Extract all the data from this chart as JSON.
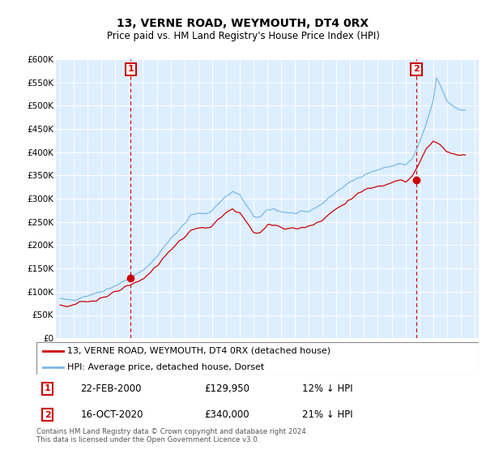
{
  "title": "13, VERNE ROAD, WEYMOUTH, DT4 0RX",
  "subtitle": "Price paid vs. HM Land Registry's House Price Index (HPI)",
  "legend_line1": "13, VERNE ROAD, WEYMOUTH, DT4 0RX (detached house)",
  "legend_line2": "HPI: Average price, detached house, Dorset",
  "annotation1_date": "22-FEB-2000",
  "annotation1_price": "£129,950",
  "annotation1_hpi": "12% ↓ HPI",
  "annotation2_date": "16-OCT-2020",
  "annotation2_price": "£340,000",
  "annotation2_hpi": "21% ↓ HPI",
  "footnote": "Contains HM Land Registry data © Crown copyright and database right 2024.\nThis data is licensed under the Open Government Licence v3.0.",
  "hpi_color": "#7ab8e8",
  "price_color": "#cc0000",
  "annotation_color": "#cc0000",
  "background_color": "#ffffff",
  "chart_bg_color": "#ddeeff",
  "grid_color": "#ffffff",
  "ylim": [
    0,
    600000
  ],
  "yticks": [
    0,
    50000,
    100000,
    150000,
    200000,
    250000,
    300000,
    350000,
    400000,
    450000,
    500000,
    550000,
    600000
  ],
  "ytick_labels": [
    "£0",
    "£50K",
    "£100K",
    "£150K",
    "£200K",
    "£250K",
    "£300K",
    "£350K",
    "£400K",
    "£450K",
    "£500K",
    "£550K",
    "£600K"
  ],
  "sale1_year": 2000.12,
  "sale1_price": 129950,
  "sale2_year": 2020.79,
  "sale2_price": 340000,
  "xlim_left": 1994.7,
  "xlim_right": 2025.3,
  "xticks": [
    1995,
    1996,
    1997,
    1998,
    1999,
    2000,
    2001,
    2002,
    2003,
    2004,
    2005,
    2006,
    2007,
    2008,
    2009,
    2010,
    2011,
    2012,
    2013,
    2014,
    2015,
    2016,
    2017,
    2018,
    2019,
    2020,
    2021,
    2022,
    2023,
    2024,
    2025
  ]
}
